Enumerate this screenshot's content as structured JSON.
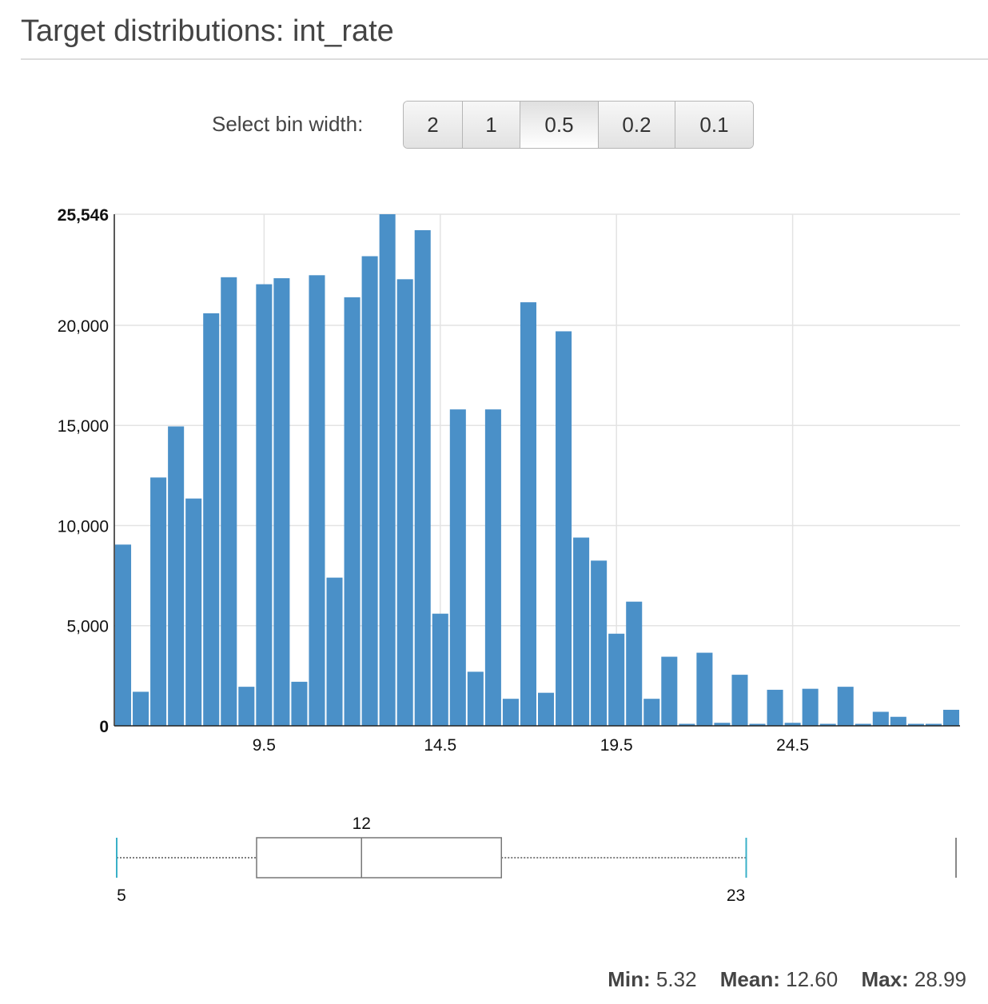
{
  "title": "Target distributions: int_rate",
  "bin_selector": {
    "label": "Select bin width:",
    "options": [
      "2",
      "1",
      "0.5",
      "0.2",
      "0.1"
    ],
    "selected": "0.5"
  },
  "chart_data": {
    "type": "bar",
    "x_range": [
      5.25,
      29.25
    ],
    "bin_width": 0.5,
    "x_ticks": [
      9.5,
      14.5,
      19.5,
      24.5
    ],
    "x_tick_labels": [
      "9.5",
      "14.5",
      "19.5",
      "24.5"
    ],
    "ylim": [
      0,
      25546
    ],
    "y_ticks": [
      0,
      5000,
      10000,
      15000,
      20000,
      25546
    ],
    "y_tick_labels": [
      "0",
      "5,000",
      "10,000",
      "15,000",
      "20,000",
      "25,546"
    ],
    "grid": true,
    "color": "#4a90c8",
    "values": [
      9050,
      1700,
      12400,
      14950,
      11350,
      20600,
      22400,
      1950,
      22050,
      22350,
      2200,
      22500,
      7400,
      21400,
      23450,
      25546,
      22300,
      24750,
      5600,
      15800,
      2700,
      15800,
      1350,
      21150,
      1650,
      19700,
      9400,
      8250,
      4600,
      6200,
      1350,
      3450,
      100,
      3650,
      150,
      2550,
      100,
      1800,
      150,
      1850,
      100,
      1950,
      100,
      700,
      450,
      100,
      100,
      800
    ]
  },
  "boxplot": {
    "whisker_low": 5,
    "q1": 9,
    "median": 12,
    "q3": 16,
    "whisker_high": 23,
    "max": 29,
    "labels": {
      "whisker_low": "5",
      "median": "12",
      "whisker_high": "23"
    }
  },
  "stats": {
    "min_label": "Min:",
    "min_value": "5.32",
    "mean_label": "Mean:",
    "mean_value": "12.60",
    "max_label": "Max:",
    "max_value": "28.99"
  }
}
